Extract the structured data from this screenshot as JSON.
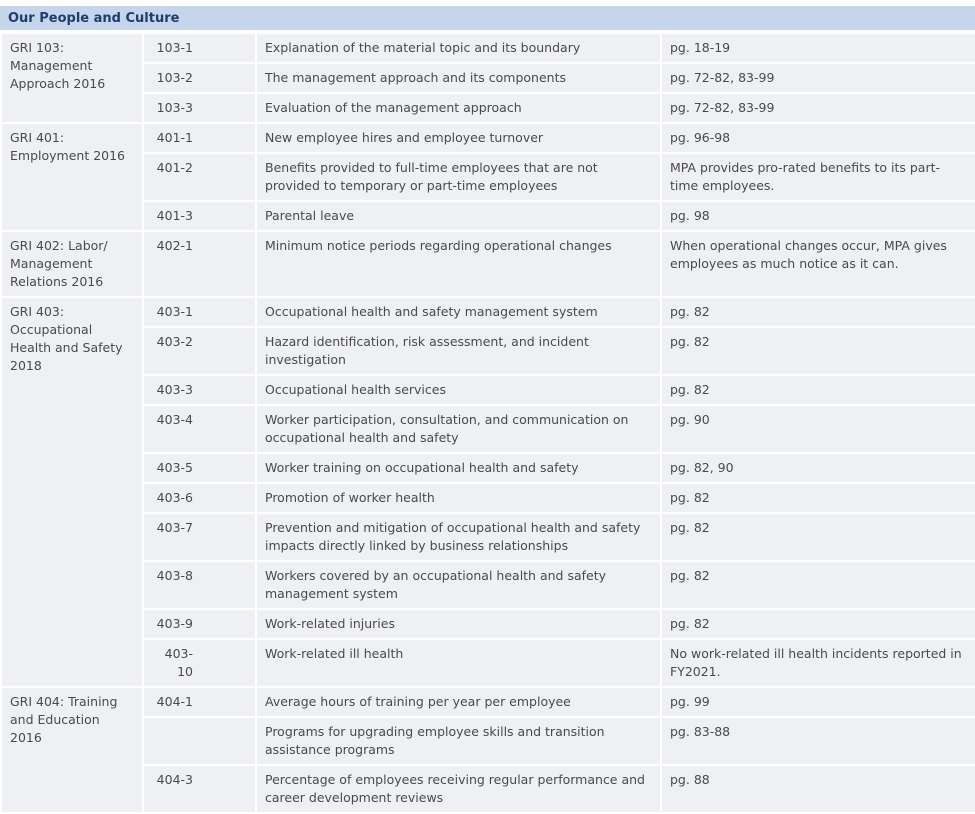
{
  "title": "Our People and Culture",
  "groups": [
    {
      "standard": "GRI 103: Management Approach 2016",
      "rows": [
        {
          "code": "103-1",
          "description": "Explanation of the material topic and its boundary",
          "reference": "pg. 18-19"
        },
        {
          "code": "103-2",
          "description": "The management approach and its components",
          "reference": "pg. 72-82, 83-99"
        },
        {
          "code": "103-3",
          "description": "Evaluation of the management approach",
          "reference": "pg. 72-82, 83-99"
        }
      ]
    },
    {
      "standard": "GRI 401: Employment 2016",
      "rows": [
        {
          "code": "401-1",
          "description": "New employee hires and employee turnover",
          "reference": "pg. 96-98"
        },
        {
          "code": "401-2",
          "description": "Benefits provided to full-time employees that are not provided to temporary or part-time employees",
          "reference": "MPA provides pro-rated benefits to its part-time employees."
        },
        {
          "code": "401-3",
          "description": "Parental leave",
          "reference": "pg. 98"
        }
      ]
    },
    {
      "standard": "GRI 402: Labor/ Management Relations 2016",
      "rows": [
        {
          "code": "402-1",
          "description": "Minimum notice periods regarding operational changes",
          "reference": "When operational changes occur, MPA gives employees as much notice as it can."
        }
      ]
    },
    {
      "standard": "GRI 403: Occupational Health and Safety 2018",
      "rows": [
        {
          "code": "403-1",
          "description": "Occupational health and safety management system",
          "reference": "pg. 82"
        },
        {
          "code": "403-2",
          "description": "Hazard identification, risk assessment, and incident investigation",
          "reference": "pg. 82"
        },
        {
          "code": "403-3",
          "description": "Occupational health services",
          "reference": "pg. 82"
        },
        {
          "code": "403-4",
          "description": "Worker participation, consultation, and communication on occupational health and safety",
          "reference": "pg. 90"
        },
        {
          "code": "403-5",
          "description": "Worker training on occupational health and safety",
          "reference": "pg. 82, 90"
        },
        {
          "code": "403-6",
          "description": "Promotion of worker health",
          "reference": "pg. 82"
        },
        {
          "code": "403-7",
          "description": "Prevention and mitigation of occupational health and safety impacts directly linked by business relationships",
          "reference": "pg. 82"
        },
        {
          "code": "403-8",
          "description": "Workers covered by an occupational health and safety management system",
          "reference": "pg. 82"
        },
        {
          "code": "403-9",
          "description": "Work-related injuries",
          "reference": "pg. 82"
        },
        {
          "code": "403-10",
          "description": "Work-related ill health",
          "reference": "No work-related ill health incidents reported in FY2021."
        }
      ]
    },
    {
      "standard": "GRI 404: Training and Education 2016",
      "rows": [
        {
          "code": "404-1",
          "description": "Average hours of training per year per employee",
          "reference": "pg. 99"
        },
        {
          "code": null,
          "description": "Programs for upgrading employee skills and transition assistance programs",
          "reference": "pg. 83-88"
        },
        {
          "code": "404-3",
          "description": "Percentage of employees receiving regular performance and career development reviews",
          "reference": "pg. 88"
        }
      ]
    }
  ]
}
